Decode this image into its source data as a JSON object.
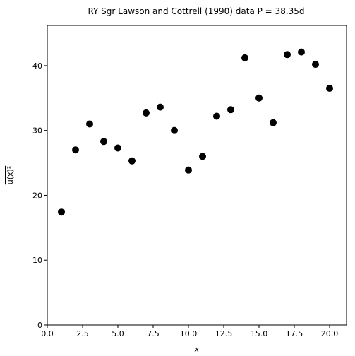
{
  "chart_data": {
    "type": "scatter",
    "title": "RY Sgr Lawson and Cottrell (1990) data P = 38.35d",
    "x_label": "x",
    "y_label": "u(x)²",
    "x": [
      1,
      2,
      3,
      4,
      5,
      6,
      7,
      8,
      9,
      10,
      11,
      12,
      13,
      14,
      15,
      16,
      17,
      18,
      19,
      20
    ],
    "values": [
      17.4,
      27.0,
      31.0,
      28.3,
      27.3,
      25.3,
      32.7,
      33.6,
      30.0,
      23.9,
      26.0,
      32.2,
      33.2,
      41.2,
      35.0,
      31.2,
      41.7,
      42.1,
      40.2,
      36.5
    ],
    "color": "#000000",
    "xlim": [
      0,
      21.2
    ],
    "ylim": [
      0,
      46.2
    ],
    "xticks": [
      {
        "value": 0,
        "label": "0.0"
      },
      2.5,
      {
        "value": 5,
        "label": "5.0"
      },
      7.5,
      {
        "value": 10,
        "label": "10.0"
      },
      12.5,
      {
        "value": 15,
        "label": "15.0"
      },
      17.5,
      {
        "value": 20,
        "label": "20.0"
      }
    ],
    "yticks": [
      0,
      10,
      20,
      30,
      40
    ]
  }
}
